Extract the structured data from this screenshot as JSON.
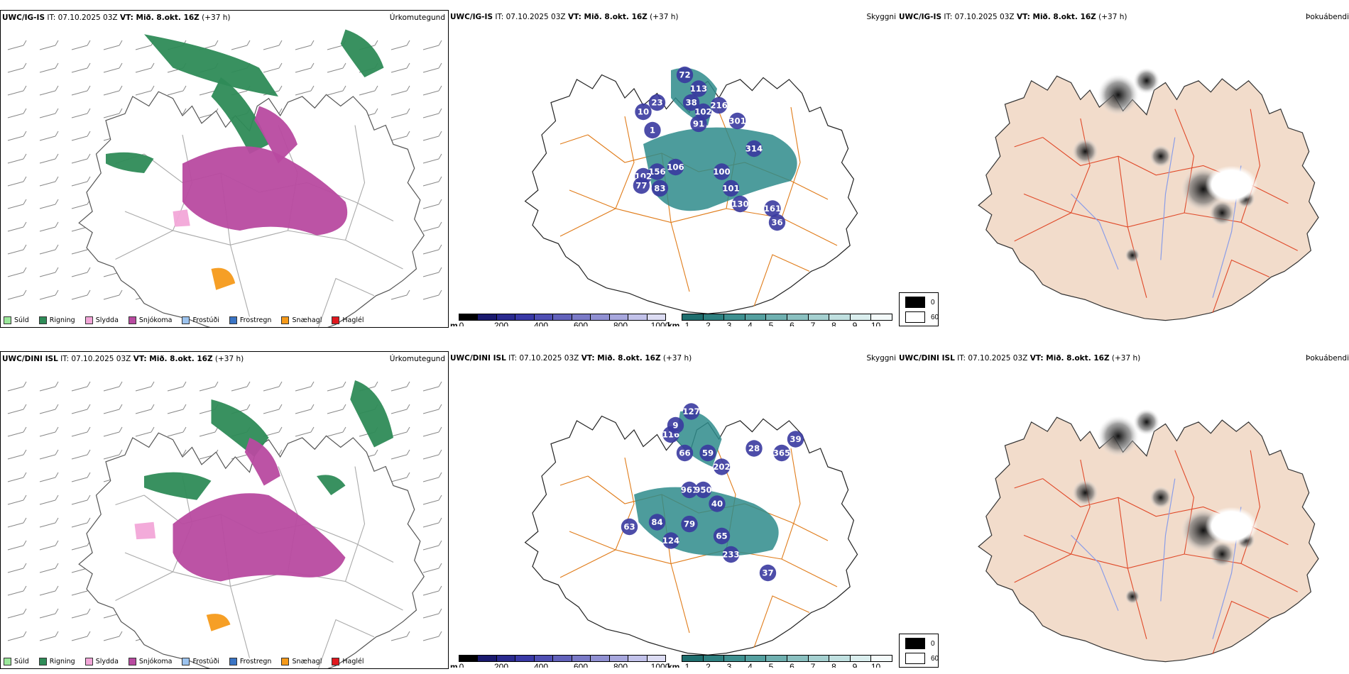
{
  "rows": [
    {
      "model": "UWC/IG-IS",
      "it": "IT: 07.10.2025 03Z",
      "vt": "VT: Mið. 8.okt. 16Z",
      "lead": "(+37 h)",
      "elevation_labels": [
        "72",
        "113",
        "38",
        "102",
        "91",
        "216",
        "301",
        "314",
        "106",
        "156",
        "102",
        "77",
        "83",
        "100",
        "101",
        "130",
        "161",
        "36",
        "23",
        "10",
        "1"
      ]
    },
    {
      "model": "UWC/DINI ISL",
      "it": "IT: 07.10.2025 03Z",
      "vt": "VT: Mið. 8.okt. 16Z",
      "lead": "(+37 h)",
      "elevation_labels": [
        "127",
        "116",
        "66",
        "59",
        "202",
        "961",
        "950",
        "63",
        "84",
        "79",
        "124",
        "65",
        "233",
        "37",
        "28",
        "365",
        "39",
        "9",
        "40"
      ]
    }
  ],
  "products": {
    "precip": "Úrkomutegund",
    "cloud": "Skyggni",
    "fog": "Þokuábendi"
  },
  "precip_legend": [
    {
      "label": "Súld",
      "color": "#9be89b"
    },
    {
      "label": "Rigning",
      "color": "#2e8b57"
    },
    {
      "label": "Slydda",
      "color": "#f2a6d8"
    },
    {
      "label": "Snjókoma",
      "color": "#b84aa0"
    },
    {
      "label": "Frostúði",
      "color": "#9cc3ee"
    },
    {
      "label": "Frostregn",
      "color": "#3a74c4"
    },
    {
      "label": "Snæhagl",
      "color": "#f59a1a"
    },
    {
      "label": "Haglél",
      "color": "#e0181e"
    }
  ],
  "ceiling_bar": {
    "unit": "m",
    "ticks": [
      "0",
      "200",
      "400",
      "600",
      "800",
      "1000"
    ],
    "colors": [
      "#000000",
      "#1a1a6e",
      "#2a2a8f",
      "#3939a6",
      "#4f4fb3",
      "#6262bb",
      "#7a7ac7",
      "#9090d2",
      "#a7a7dd",
      "#c2c2ea",
      "#dcdcf3"
    ]
  },
  "vis_bar": {
    "unit": "km",
    "ticks": [
      "1",
      "2",
      "3",
      "4",
      "5",
      "6",
      "7",
      "8",
      "9",
      "10"
    ],
    "colors": [
      "#1e6e6e",
      "#2e8080",
      "#3e9090",
      "#55a0a0",
      "#6fb0b0",
      "#8ac0c0",
      "#a5d0d0",
      "#c0e0e0",
      "#daeeee",
      "#f3fafa"
    ]
  },
  "fog_legend": [
    {
      "label": "0",
      "color": "#000000"
    },
    {
      "label": "60",
      "color": "#ffffff"
    }
  ]
}
